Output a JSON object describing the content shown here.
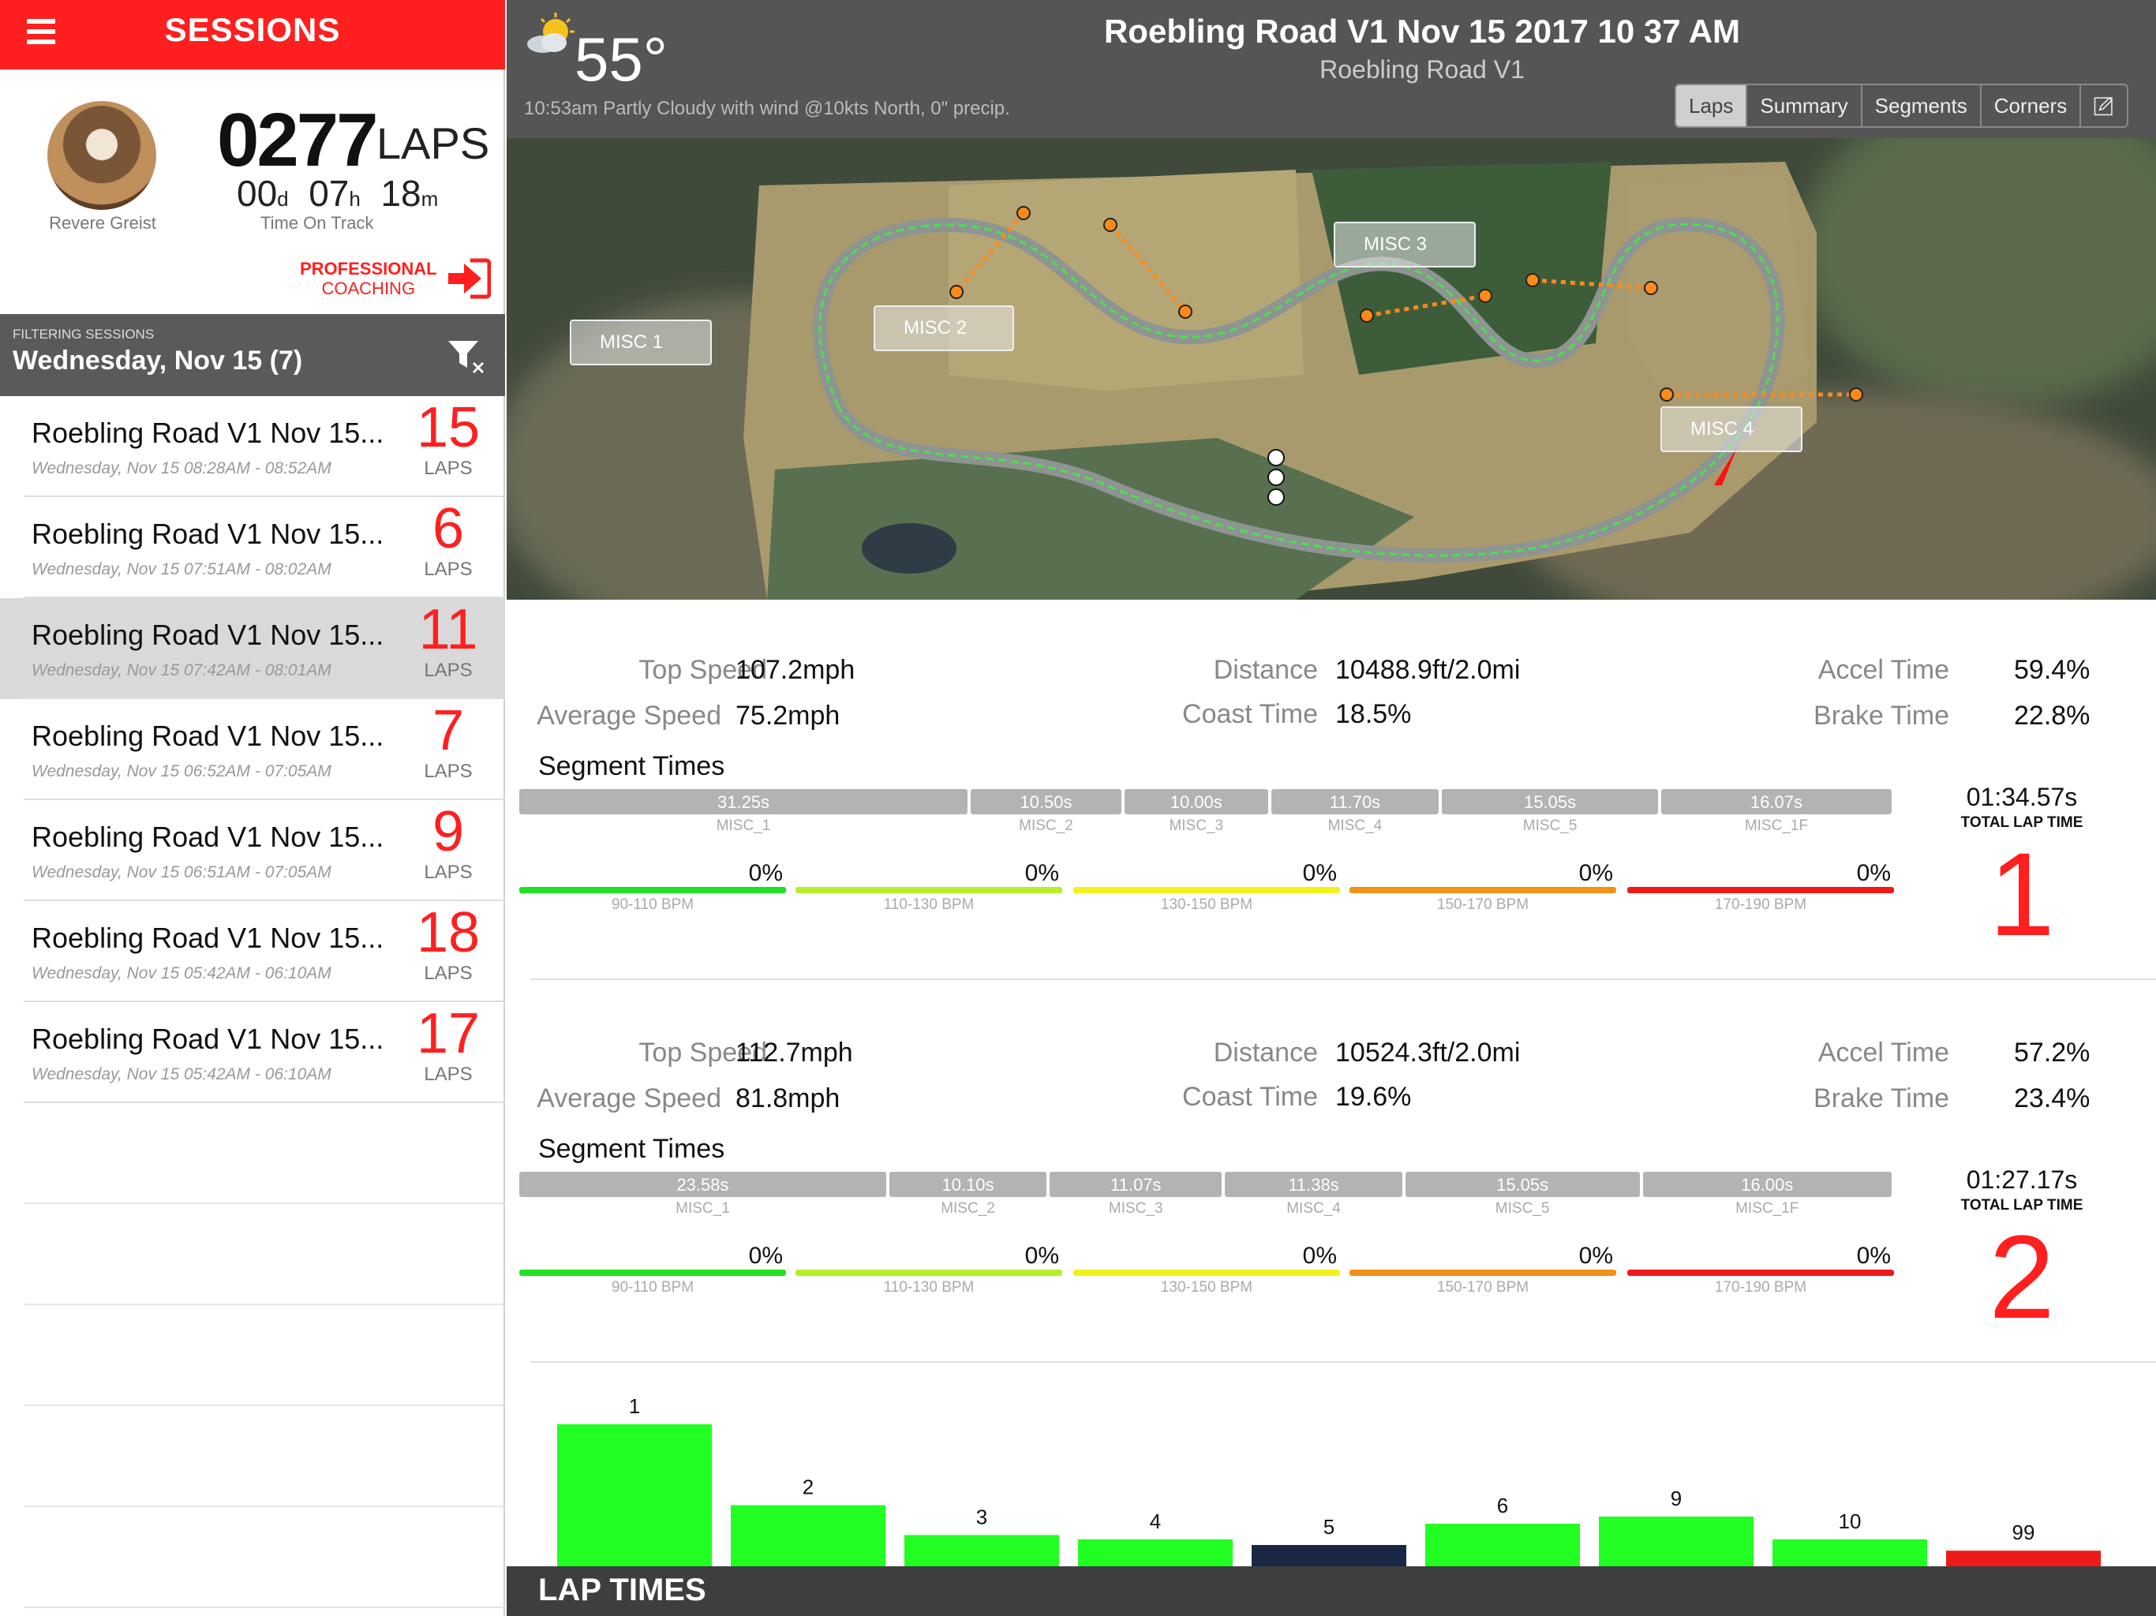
{
  "sidebar": {
    "title": "SESSIONS",
    "profile": {
      "name": "Revere Greist",
      "laps_count": "0277",
      "laps_unit": "LAPS",
      "time_on_track": {
        "days": "00",
        "days_unit": "d",
        "hours": "07",
        "hours_unit": "h",
        "minutes": "18",
        "minutes_unit": "m"
      },
      "time_on_track_label": "Time On Track",
      "coaching_line1": "PROFESSIONAL",
      "coaching_line2": "COACHING"
    },
    "filter": {
      "label": "FILTERING SESSIONS",
      "value": "Wednesday, Nov 15 (7)"
    },
    "sessions": [
      {
        "title": "Roebling Road V1 Nov 15...",
        "date": "Wednesday, Nov 15 08:28AM - 08:52AM",
        "laps": "15",
        "unit": "LAPS"
      },
      {
        "title": "Roebling Road V1 Nov 15...",
        "date": "Wednesday, Nov 15 07:51AM - 08:02AM",
        "laps": "6",
        "unit": "LAPS"
      },
      {
        "title": "Roebling Road V1 Nov 15...",
        "date": "Wednesday, Nov 15 07:42AM - 08:01AM",
        "laps": "11",
        "unit": "LAPS",
        "selected": true
      },
      {
        "title": "Roebling Road V1 Nov 15...",
        "date": "Wednesday, Nov 15 06:52AM - 07:05AM",
        "laps": "7",
        "unit": "LAPS"
      },
      {
        "title": "Roebling Road V1 Nov 15...",
        "date": "Wednesday, Nov 15 06:51AM - 07:05AM",
        "laps": "9",
        "unit": "LAPS"
      },
      {
        "title": "Roebling Road V1 Nov 15...",
        "date": "Wednesday, Nov 15 05:42AM - 06:10AM",
        "laps": "18",
        "unit": "LAPS"
      },
      {
        "title": "Roebling Road V1 Nov 15...",
        "date": "Wednesday, Nov 15 05:42AM - 06:10AM",
        "laps": "17",
        "unit": "LAPS"
      }
    ]
  },
  "header": {
    "temperature": "55°",
    "weather": "10:53am Partly Cloudy with wind @10kts North, 0\" precip.",
    "title": "Roebling Road V1 Nov 15 2017 10 37 AM",
    "subtitle": "Roebling Road V1",
    "tabs": [
      "Laps",
      "Summary",
      "Segments",
      "Corners"
    ],
    "active_tab": "Laps"
  },
  "map": {
    "labels": [
      "MISC 1",
      "MISC 2",
      "MISC 3",
      "MISC 4"
    ]
  },
  "labels": {
    "top_speed": "Top Speed",
    "average_speed": "Average Speed",
    "distance": "Distance",
    "coast_time": "Coast Time",
    "accel_time": "Accel Time",
    "brake_time": "Brake Time",
    "segment_times": "Segment Times",
    "total_lap_time": "TOTAL LAP TIME"
  },
  "laps": [
    {
      "number": "1",
      "top_speed": "107.2mph",
      "average_speed": "75.2mph",
      "distance": "10488.9ft/2.0mi",
      "coast_time": "18.5%",
      "accel_time": "59.4%",
      "brake_time": "22.8%",
      "total_time": "01:34.57s",
      "segments": [
        {
          "time": "31.25s",
          "name": "MISC_1"
        },
        {
          "time": "10.50s",
          "name": "MISC_2"
        },
        {
          "time": "10.00s",
          "name": "MISC_3"
        },
        {
          "time": "11.70s",
          "name": "MISC_4"
        },
        {
          "time": "15.05s",
          "name": "MISC_5"
        },
        {
          "time": "16.07s",
          "name": "MISC_1F"
        }
      ],
      "bpm": [
        {
          "pct": "0%",
          "range": "90-110 BPM"
        },
        {
          "pct": "0%",
          "range": "110-130 BPM"
        },
        {
          "pct": "0%",
          "range": "130-150 BPM"
        },
        {
          "pct": "0%",
          "range": "150-170 BPM"
        },
        {
          "pct": "0%",
          "range": "170-190 BPM"
        }
      ]
    },
    {
      "number": "2",
      "top_speed": "112.7mph",
      "average_speed": "81.8mph",
      "distance": "10524.3ft/2.0mi",
      "coast_time": "19.6%",
      "accel_time": "57.2%",
      "brake_time": "23.4%",
      "total_time": "01:27.17s",
      "segments": [
        {
          "time": "23.58s",
          "name": "MISC_1"
        },
        {
          "time": "10.10s",
          "name": "MISC_2"
        },
        {
          "time": "11.07s",
          "name": "MISC_3"
        },
        {
          "time": "11.38s",
          "name": "MISC_4"
        },
        {
          "time": "15.05s",
          "name": "MISC_5"
        },
        {
          "time": "16.00s",
          "name": "MISC_1F"
        }
      ],
      "bpm": [
        {
          "pct": "0%",
          "range": "90-110 BPM"
        },
        {
          "pct": "0%",
          "range": "110-130 BPM"
        },
        {
          "pct": "0%",
          "range": "130-150 BPM"
        },
        {
          "pct": "0%",
          "range": "150-170 BPM"
        },
        {
          "pct": "0%",
          "range": "170-190 BPM"
        }
      ]
    }
  ],
  "bpm_colors": [
    "#22e022",
    "#b6ee2a",
    "#f2f21a",
    "#f29018",
    "#ee1a1a"
  ],
  "lap_chart": {
    "title": "LAP TIMES",
    "bars": [
      {
        "label": "1",
        "value": 1.0,
        "color": "#22ff22"
      },
      {
        "label": "2",
        "value": 0.43,
        "color": "#22ff22"
      },
      {
        "label": "3",
        "value": 0.22,
        "color": "#22ff22"
      },
      {
        "label": "4",
        "value": 0.19,
        "color": "#22ff22"
      },
      {
        "label": "5",
        "value": 0.15,
        "color": "#1a2744"
      },
      {
        "label": "6",
        "value": 0.3,
        "color": "#22ff22"
      },
      {
        "label": "9",
        "value": 0.35,
        "color": "#22ff22"
      },
      {
        "label": "10",
        "value": 0.19,
        "color": "#22ff22"
      },
      {
        "label": "99",
        "value": 0.11,
        "color": "#ee1a1a"
      }
    ]
  }
}
